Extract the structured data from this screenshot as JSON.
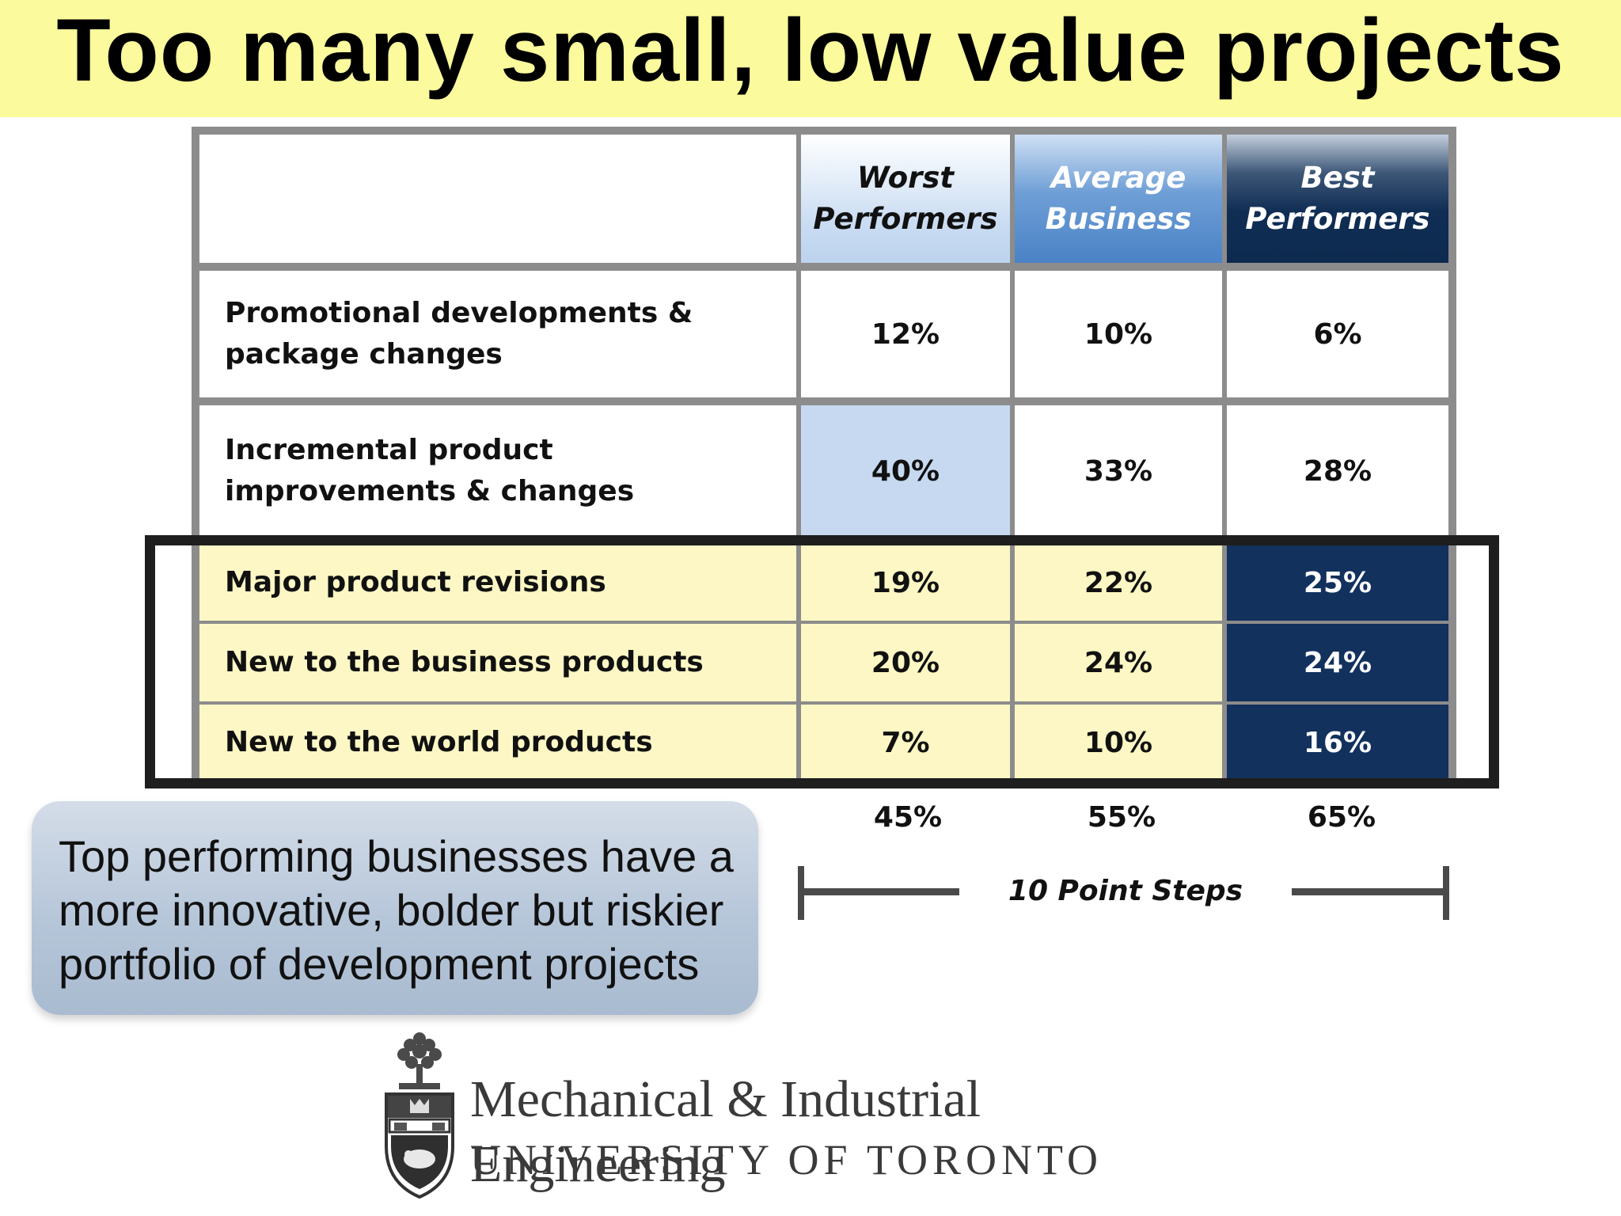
{
  "title": "Too many small, low value projects",
  "table": {
    "headers": [
      "Worst Performers",
      "Average Business",
      "Best Performers"
    ],
    "rows": [
      {
        "label": "Promotional developments & package changes",
        "values": [
          "12%",
          "10%",
          "6%"
        ]
      },
      {
        "label": "Incremental product improvements & changes",
        "values": [
          "40%",
          "33%",
          "28%"
        ]
      },
      {
        "label": "Major product revisions",
        "values": [
          "19%",
          "22%",
          "25%"
        ]
      },
      {
        "label": "New to the business products",
        "values": [
          "20%",
          "24%",
          "24%"
        ]
      },
      {
        "label": "New to the world products",
        "values": [
          "7%",
          "10%",
          "16%"
        ]
      }
    ],
    "totals": [
      "45%",
      "55%",
      "65%"
    ]
  },
  "steps_label": "10 Point Steps",
  "callout": "Top performing businesses have a more innovative, bolder but riskier portfolio of development projects",
  "logo": {
    "line1": "Mechanical & Industrial Engineering",
    "line2": "UNIVERSITY OF TORONTO"
  },
  "colors": {
    "title_band": "#fbfa9c",
    "highlight_yellow": "#fcf7c4",
    "navy": "#12315d",
    "light_blue": "#c6d9f0"
  }
}
